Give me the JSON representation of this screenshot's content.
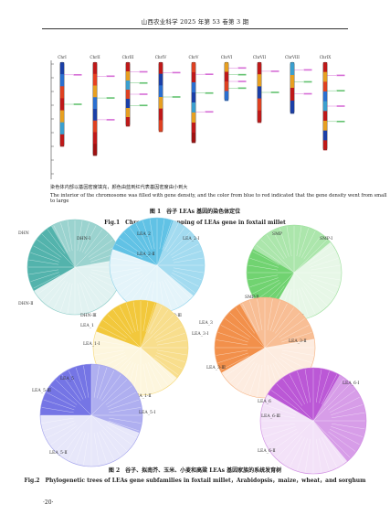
{
  "header": {
    "journal": "山西农业科学 2025 年第 53 卷第 3 期"
  },
  "figure1": {
    "chromosomes": [
      {
        "name": "ChrI",
        "colors": [
          "#1a3fa8",
          "#2a6fd1",
          "#e04020",
          "#c01818",
          "#e8a020",
          "#3aa0d0",
          "#c01818"
        ]
      },
      {
        "name": "ChrII",
        "colors": [
          "#c01818",
          "#e84020",
          "#e8a020",
          "#2a6fd1",
          "#1a3fa8",
          "#e04020",
          "#c01818",
          "#a01010"
        ]
      },
      {
        "name": "ChrIII",
        "colors": [
          "#c01818",
          "#e8a020",
          "#3aa0d0",
          "#e04020",
          "#1a3fa8",
          "#e8a020",
          "#c01818"
        ]
      },
      {
        "name": "ChrIV",
        "colors": [
          "#c01818",
          "#1a3fa8",
          "#2a6fd1",
          "#e8a020",
          "#c01818",
          "#e04020"
        ]
      },
      {
        "name": "ChrV",
        "colors": [
          "#e04020",
          "#c01818",
          "#2a6fd1",
          "#1a3fa8",
          "#3aa0d0",
          "#e8a020",
          "#c01818",
          "#a01010"
        ]
      },
      {
        "name": "ChrVI",
        "colors": [
          "#e8a020",
          "#c01818",
          "#e04020",
          "#2a6fd1"
        ]
      },
      {
        "name": "ChrVII",
        "colors": [
          "#c01818",
          "#e8a020",
          "#1a3fa8",
          "#e04020",
          "#c01818"
        ]
      },
      {
        "name": "ChrVIII",
        "colors": [
          "#3aa0d0",
          "#e8a020",
          "#c01818",
          "#1a3fa8"
        ]
      },
      {
        "name": "ChrIX",
        "colors": [
          "#c01818",
          "#e8a020",
          "#e04020",
          "#2a6fd1",
          "#3aa0d0",
          "#c01818",
          "#e8a020",
          "#1a3fa8",
          "#c01818"
        ]
      }
    ],
    "caption_cn": "染色体内部以基因密度填充，颜色由蓝到红代表基因密度由小到大",
    "caption_en": "The interior of the chromosome was filled with gene density, and the color from blue to red indicated that the gene density went from small to large",
    "title_cn": "图 1　谷子 LEAs 基因的染色体定位",
    "title_en": "Fig.1　Chromosome mapping of LEAs gene in foxtail millet"
  },
  "figure2": {
    "trees": [
      {
        "color": "#3aa8a0",
        "labels": [
          "DHN",
          "DHN-Ⅰ",
          "DHN-Ⅱ",
          "DHN-Ⅲ"
        ]
      },
      {
        "color": "#4ab8e0",
        "labels": [
          "LEA_2",
          "LEA_2-Ⅰ",
          "LEA_2-Ⅱ",
          "LEA_2-Ⅲ"
        ]
      },
      {
        "color": "#5ccc5c",
        "labels": [
          "SMP",
          "SMP-Ⅰ",
          "SMP-Ⅱ",
          "SMP-Ⅲ"
        ]
      },
      {
        "color": "#f0c020",
        "labels": [
          "LEA_1",
          "LEA_1-Ⅰ",
          "LEA_1-Ⅱ",
          "LEA_1-Ⅲ"
        ]
      },
      {
        "color": "#f08030",
        "labels": [
          "LEA_3",
          "LEA_3-Ⅰ",
          "LEA_3-Ⅱ",
          "LEA_3-Ⅲ"
        ]
      },
      {
        "color": "#6060e0",
        "labels": [
          "LEA_5",
          "LEA_5-Ⅰ",
          "LEA_5-Ⅱ",
          "LEA_5-Ⅲ"
        ]
      },
      {
        "color": "#b040d0",
        "labels": [
          "LEA_6",
          "LEA_6-Ⅰ",
          "LEA_6-Ⅱ",
          "LEA_6-Ⅲ"
        ]
      }
    ],
    "title_cn": "图 2　谷子、拟南芥、玉米、小麦和高粱 LEAs 基因家族的系统发育树",
    "title_en": "Fig.2　Phylogenetic trees of LEAs gene subfamilies in foxtail millet，Arabidopsis，maize，wheat，and sorghum"
  },
  "page_number": "·20·"
}
